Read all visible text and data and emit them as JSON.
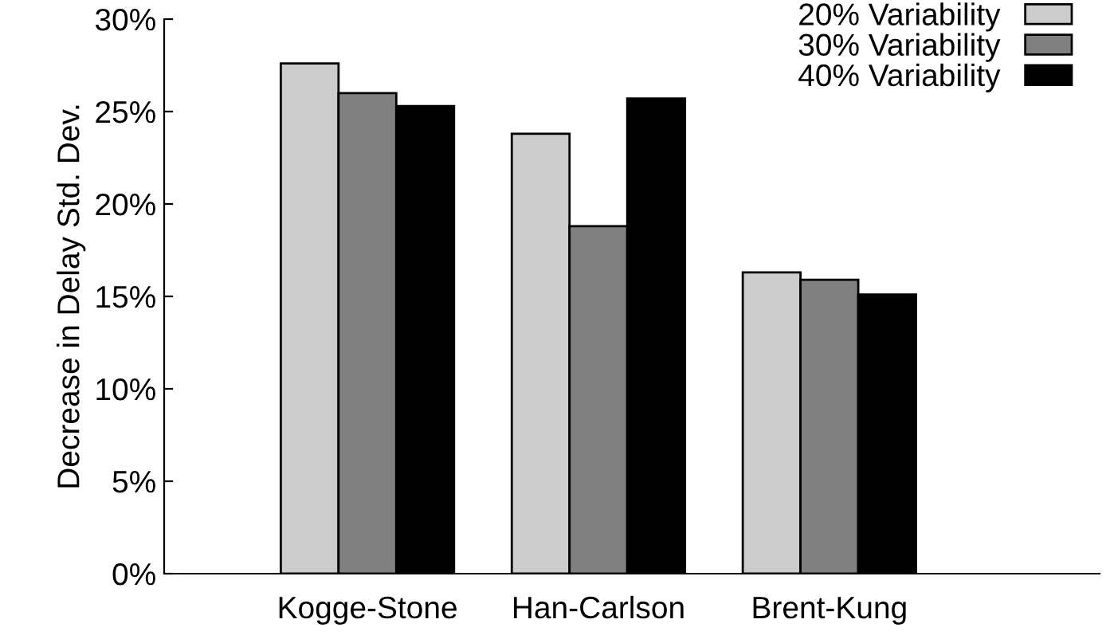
{
  "chart_data": {
    "type": "bar",
    "ylabel": "Decrease in Delay Std. Dev.",
    "categories": [
      "Kogge-Stone",
      "Han-Carlson",
      "Brent-Kung"
    ],
    "series": [
      {
        "name": "20% Variability",
        "color": "#cccccc",
        "values": [
          27.6,
          23.8,
          16.3
        ]
      },
      {
        "name": "30% Variability",
        "color": "#808080",
        "values": [
          26.0,
          18.8,
          15.9
        ]
      },
      {
        "name": "40% Variability",
        "color": "#000000",
        "values": [
          25.3,
          25.7,
          15.1
        ]
      }
    ],
    "ylim": [
      0,
      30
    ],
    "yticks": [
      {
        "value": 0,
        "label": "0%"
      },
      {
        "value": 5,
        "label": "5%"
      },
      {
        "value": 10,
        "label": "10%"
      },
      {
        "value": 15,
        "label": "15%"
      },
      {
        "value": 20,
        "label": "20%"
      },
      {
        "value": 25,
        "label": "25%"
      },
      {
        "value": 30,
        "label": "30%"
      }
    ],
    "grid": false,
    "legend": "top right"
  }
}
